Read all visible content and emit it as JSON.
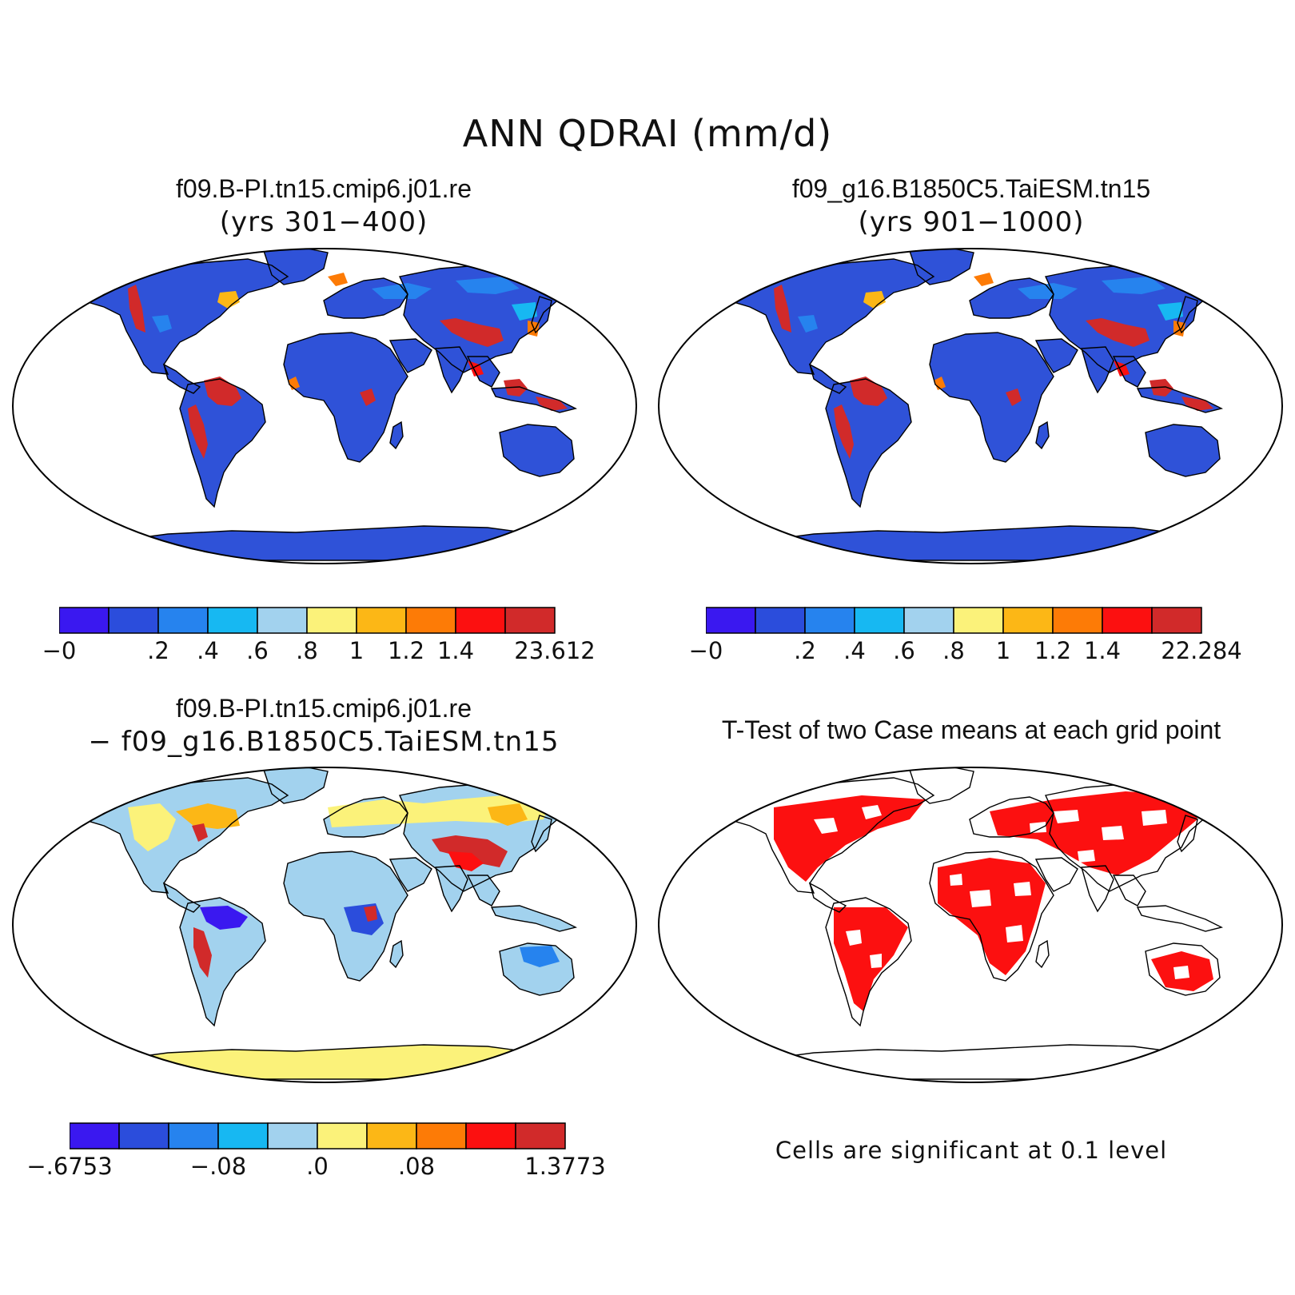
{
  "figure": {
    "title": "ANN QDRAI (mm/d)"
  },
  "panels": {
    "case1": {
      "title": "f09.B-PI.tn15.cmip6.j01.re",
      "subtitle": "(yrs 301−400)"
    },
    "case2": {
      "title": "f09_g16.B1850C5.TaiESM.tn15",
      "subtitle": "(yrs 901−1000)"
    },
    "diff": {
      "title": "f09.B-PI.tn15.cmip6.j01.re",
      "subtitle": "− f09_g16.B1850C5.TaiESM.tn15"
    },
    "ttest": {
      "title": "T-Test of two Case means at each grid point",
      "note": "Cells are significant at 0.1 level"
    }
  },
  "colorbars": {
    "abs_colors": [
      "#3a18f0",
      "#2b4ddc",
      "#2683ee",
      "#17b8f2",
      "#a2d2ee",
      "#fbf27a",
      "#fcb716",
      "#fd7b06",
      "#fc1010",
      "#d12a2a"
    ],
    "case1_labels": [
      "−0",
      ".2",
      ".4",
      ".6",
      ".8",
      "1",
      "1.2",
      "1.4",
      "23.612"
    ],
    "case2_labels": [
      "−0",
      ".2",
      ".4",
      ".6",
      ".8",
      "1",
      "1.2",
      "1.4",
      "22.284"
    ],
    "diff_labels": [
      "−.6753",
      "−.08",
      ".0",
      ".08",
      "1.3773"
    ]
  },
  "colors": {
    "land_low": "#2f52d8",
    "wet_high": "#d12a2a",
    "diff_base": "#a2d2ee",
    "diff_antarctica": "#fbf27a",
    "significant": "#fc1010"
  }
}
